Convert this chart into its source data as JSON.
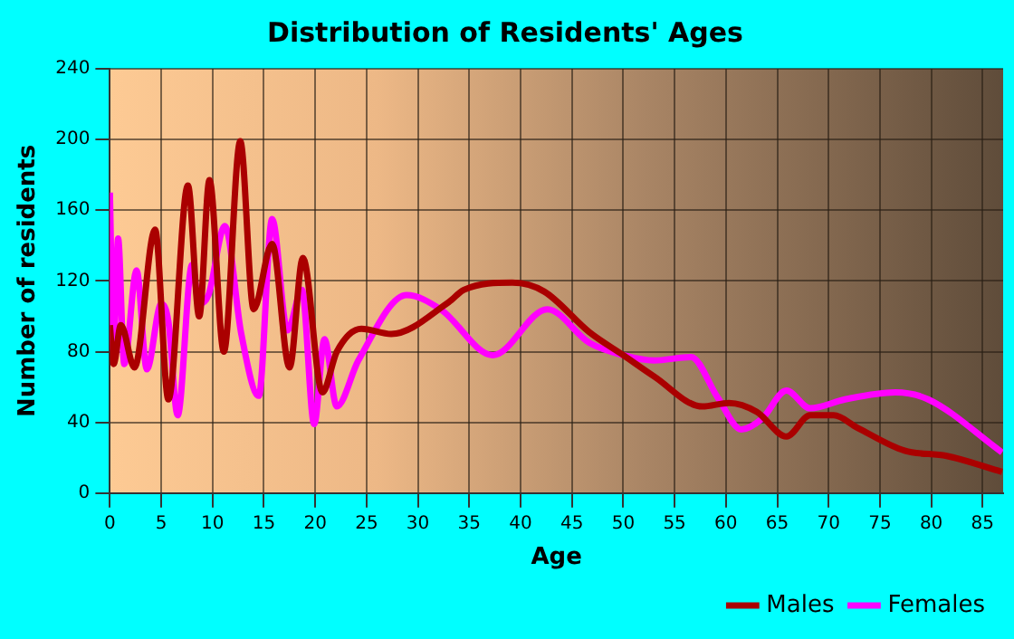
{
  "chart_data": {
    "type": "line",
    "title": "Distribution of Residents' Ages",
    "xlabel": "Age",
    "ylabel": "Number of residents",
    "xlim": [
      0,
      87
    ],
    "xticks": [
      0,
      5,
      10,
      15,
      20,
      25,
      30,
      35,
      40,
      45,
      50,
      55,
      60,
      65,
      70,
      75,
      80,
      85
    ],
    "ylim": [
      0,
      240
    ],
    "yticks": [
      0,
      40,
      80,
      120,
      160,
      200,
      240
    ],
    "grid": true,
    "legend": "bottom right",
    "marker": "none",
    "line_style": "solid",
    "series": [
      {
        "name": "Males",
        "color": "#aa0000",
        "x": [
          0,
          0.36,
          1.07,
          2.4,
          4.4,
          5.7,
          7.6,
          8.7,
          9.7,
          11.1,
          12.7,
          14,
          15.8,
          17.5,
          18.8,
          20.7,
          22.1,
          24.5,
          27.4,
          33,
          34.5,
          39.2,
          42.3,
          46.7,
          50,
          53,
          57.7,
          60.3,
          63,
          65.9,
          68.2,
          70.5,
          72.8,
          77.4,
          81.5,
          86.9
        ],
        "values": [
          95,
          73,
          95,
          71,
          149,
          53,
          174,
          100,
          177,
          80,
          199,
          104,
          141,
          71,
          133,
          57,
          80,
          93,
          90,
          108,
          115,
          119,
          114,
          91,
          78,
          66,
          49,
          51,
          46,
          32,
          44,
          44,
          37,
          24,
          21,
          12
        ]
      },
      {
        "name": "Females",
        "color": "#ff00ff",
        "x": [
          0,
          0.36,
          0.8,
          1.4,
          2.6,
          3.6,
          5,
          5.7,
          6.6,
          8,
          8.7,
          9.6,
          11.2,
          12.8,
          14.5,
          15.8,
          17.3,
          18.7,
          19.9,
          20.9,
          22.1,
          24.2,
          28.9,
          32.2,
          37.3,
          42.6,
          46.7,
          50,
          53,
          56.6,
          59.2,
          61.5,
          63.5,
          65.9,
          68.2,
          71.6,
          76.5,
          79.7,
          86.9
        ],
        "values": [
          170,
          80,
          144,
          73,
          126,
          70,
          107,
          97,
          44,
          129,
          107,
          112,
          151,
          90,
          55,
          155,
          92,
          115,
          39,
          87,
          49,
          75,
          112,
          104,
          78,
          104,
          85,
          78,
          75,
          77,
          54,
          36,
          42,
          58,
          48,
          53,
          57,
          53,
          23
        ]
      }
    ]
  }
}
